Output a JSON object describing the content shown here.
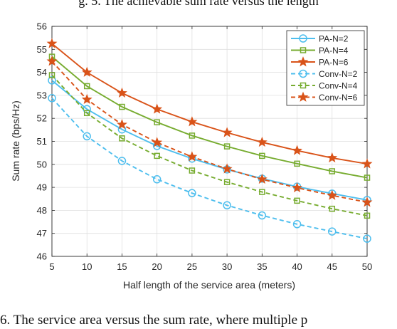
{
  "page": {
    "top_text": "g. 5. The achievable sum rate versus the length",
    "bottom_text": "6. The service area versus the sum rate, where multiple p"
  },
  "chart_data": {
    "type": "line",
    "xlabel": "Half length of the service area (meters)",
    "ylabel": "Sum rate (bps/Hz)",
    "xlim": [
      5,
      50
    ],
    "ylim": [
      46,
      56
    ],
    "xticks": [
      5,
      10,
      15,
      20,
      25,
      30,
      35,
      40,
      45,
      50
    ],
    "yticks": [
      46,
      47,
      48,
      49,
      50,
      51,
      52,
      53,
      54,
      55,
      56
    ],
    "grid": true,
    "legend_position": "top-right",
    "x": [
      5,
      10,
      15,
      20,
      25,
      30,
      35,
      40,
      45,
      50
    ],
    "series": [
      {
        "name": "PA-N=2",
        "values": [
          53.65,
          52.4,
          51.52,
          50.8,
          50.25,
          49.78,
          49.38,
          49.03,
          48.73,
          48.45
        ],
        "color": "#4DBEEE",
        "dash": "solid",
        "marker": "circle"
      },
      {
        "name": "PA-N=4",
        "values": [
          54.68,
          53.4,
          52.5,
          51.83,
          51.25,
          50.78,
          50.37,
          50.03,
          49.7,
          49.42
        ],
        "color": "#77AC30",
        "dash": "solid",
        "marker": "square"
      },
      {
        "name": "PA-N=6",
        "values": [
          55.25,
          54.0,
          53.1,
          52.4,
          51.85,
          51.38,
          50.96,
          50.6,
          50.28,
          50.02
        ],
        "color": "#D95319",
        "dash": "solid",
        "marker": "star"
      },
      {
        "name": "Conv-N=2",
        "values": [
          52.88,
          51.22,
          50.15,
          49.35,
          48.75,
          48.22,
          47.78,
          47.4,
          47.08,
          46.77
        ],
        "color": "#4DBEEE",
        "dash": "dashed",
        "marker": "circle"
      },
      {
        "name": "Conv-N=4",
        "values": [
          53.88,
          52.23,
          51.13,
          50.37,
          49.73,
          49.23,
          48.8,
          48.42,
          48.07,
          47.77
        ],
        "color": "#77AC30",
        "dash": "dashed",
        "marker": "square"
      },
      {
        "name": "Conv-N=6",
        "values": [
          54.48,
          52.82,
          51.73,
          50.95,
          50.33,
          49.8,
          49.35,
          48.98,
          48.65,
          48.35
        ],
        "color": "#D95319",
        "dash": "dashed",
        "marker": "star"
      }
    ]
  }
}
